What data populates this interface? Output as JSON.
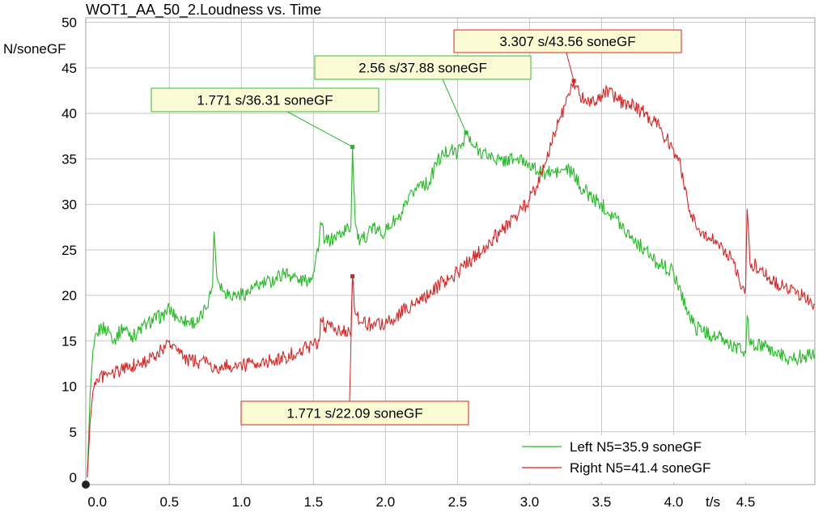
{
  "chart_data": {
    "type": "line",
    "title": "WOT1_AA_50_2.Loudness vs. Time",
    "xlabel": "t/s",
    "ylabel": "N/soneGF",
    "xlim": [
      -0.08,
      4.98
    ],
    "ylim": [
      -0.8,
      50.5
    ],
    "x_ticks": [
      0.0,
      0.5,
      1.0,
      1.5,
      2.0,
      2.5,
      3.0,
      3.5,
      4.0,
      4.5
    ],
    "x_tick_labels": [
      "0.0",
      "0.5",
      "1.0",
      "1.5",
      "2.0",
      "2.5",
      "3.0",
      "3.5",
      "4.0",
      "4.5"
    ],
    "y_ticks": [
      0,
      5,
      10,
      15,
      20,
      25,
      30,
      35,
      40,
      45,
      50
    ],
    "y_tick_labels": [
      "0",
      "5",
      "10",
      "15",
      "20",
      "25",
      "30",
      "35",
      "40",
      "45",
      "50"
    ],
    "grid": true,
    "legend_position": "bottom-right",
    "series": [
      {
        "name": "Left N5=35.9 soneGF",
        "color": "#22bb22",
        "points": [
          [
            -0.07,
            0.0
          ],
          [
            -0.05,
            9.0
          ],
          [
            -0.03,
            14.0
          ],
          [
            0.0,
            15.8
          ],
          [
            0.03,
            16.5
          ],
          [
            0.08,
            16.0
          ],
          [
            0.12,
            15.2
          ],
          [
            0.18,
            16.5
          ],
          [
            0.25,
            15.5
          ],
          [
            0.35,
            17.0
          ],
          [
            0.45,
            17.8
          ],
          [
            0.5,
            18.5
          ],
          [
            0.55,
            17.5
          ],
          [
            0.6,
            17.2
          ],
          [
            0.7,
            17.0
          ],
          [
            0.75,
            18.5
          ],
          [
            0.8,
            21.0
          ],
          [
            0.81,
            27.0
          ],
          [
            0.83,
            22.0
          ],
          [
            0.88,
            20.5
          ],
          [
            0.95,
            20.0
          ],
          [
            1.05,
            20.3
          ],
          [
            1.1,
            21.0
          ],
          [
            1.2,
            21.5
          ],
          [
            1.3,
            22.5
          ],
          [
            1.4,
            21.8
          ],
          [
            1.45,
            21.5
          ],
          [
            1.5,
            22.5
          ],
          [
            1.54,
            26.0
          ],
          [
            1.55,
            28.0
          ],
          [
            1.58,
            26.0
          ],
          [
            1.62,
            26.0
          ],
          [
            1.7,
            27.0
          ],
          [
            1.76,
            27.5
          ],
          [
            1.771,
            36.31
          ],
          [
            1.79,
            28.0
          ],
          [
            1.82,
            25.5
          ],
          [
            1.9,
            27.5
          ],
          [
            1.95,
            27.0
          ],
          [
            2.0,
            27.0
          ],
          [
            2.05,
            28.0
          ],
          [
            2.1,
            28.5
          ],
          [
            2.15,
            30.0
          ],
          [
            2.2,
            31.5
          ],
          [
            2.25,
            32.5
          ],
          [
            2.3,
            32.0
          ],
          [
            2.35,
            34.5
          ],
          [
            2.4,
            35.5
          ],
          [
            2.45,
            36.0
          ],
          [
            2.5,
            35.5
          ],
          [
            2.56,
            37.88
          ],
          [
            2.6,
            36.5
          ],
          [
            2.65,
            36.0
          ],
          [
            2.7,
            35.5
          ],
          [
            2.8,
            34.8
          ],
          [
            2.9,
            35.0
          ],
          [
            3.0,
            34.5
          ],
          [
            3.05,
            33.5
          ],
          [
            3.1,
            33.5
          ],
          [
            3.2,
            33.5
          ],
          [
            3.25,
            33.8
          ],
          [
            3.3,
            33.5
          ],
          [
            3.35,
            32.0
          ],
          [
            3.45,
            30.5
          ],
          [
            3.5,
            30.0
          ],
          [
            3.6,
            28.5
          ],
          [
            3.7,
            26.5
          ],
          [
            3.8,
            25.0
          ],
          [
            3.85,
            24.0
          ],
          [
            3.9,
            23.5
          ],
          [
            4.0,
            22.5
          ],
          [
            4.05,
            20.5
          ],
          [
            4.1,
            18.0
          ],
          [
            4.15,
            16.5
          ],
          [
            4.2,
            16.0
          ],
          [
            4.3,
            15.5
          ],
          [
            4.4,
            14.5
          ],
          [
            4.48,
            13.8
          ],
          [
            4.5,
            13.7
          ],
          [
            4.51,
            17.8
          ],
          [
            4.53,
            14.5
          ],
          [
            4.6,
            14.5
          ],
          [
            4.7,
            13.8
          ],
          [
            4.8,
            13.0
          ],
          [
            4.9,
            13.3
          ],
          [
            4.98,
            13.5
          ]
        ]
      },
      {
        "name": "Right N5=41.4 soneGF",
        "color": "#dd2222",
        "points": [
          [
            -0.07,
            0.0
          ],
          [
            -0.05,
            6.0
          ],
          [
            -0.03,
            9.5
          ],
          [
            0.0,
            10.8
          ],
          [
            0.05,
            11.2
          ],
          [
            0.1,
            11.5
          ],
          [
            0.2,
            12.0
          ],
          [
            0.3,
            12.5
          ],
          [
            0.4,
            13.2
          ],
          [
            0.45,
            14.0
          ],
          [
            0.5,
            15.0
          ],
          [
            0.55,
            14.0
          ],
          [
            0.6,
            13.2
          ],
          [
            0.65,
            12.8
          ],
          [
            0.75,
            12.5
          ],
          [
            0.85,
            12.2
          ],
          [
            1.0,
            12.3
          ],
          [
            1.1,
            12.5
          ],
          [
            1.2,
            12.8
          ],
          [
            1.3,
            13.2
          ],
          [
            1.4,
            13.8
          ],
          [
            1.5,
            14.5
          ],
          [
            1.54,
            15.0
          ],
          [
            1.55,
            17.5
          ],
          [
            1.58,
            16.5
          ],
          [
            1.65,
            16.5
          ],
          [
            1.7,
            16.2
          ],
          [
            1.76,
            15.5
          ],
          [
            1.771,
            22.09
          ],
          [
            1.79,
            18.0
          ],
          [
            1.82,
            17.0
          ],
          [
            1.9,
            16.8
          ],
          [
            2.0,
            17.0
          ],
          [
            2.1,
            18.0
          ],
          [
            2.2,
            19.0
          ],
          [
            2.3,
            20.0
          ],
          [
            2.4,
            21.5
          ],
          [
            2.5,
            22.5
          ],
          [
            2.6,
            24.0
          ],
          [
            2.7,
            25.5
          ],
          [
            2.8,
            27.0
          ],
          [
            2.9,
            28.5
          ],
          [
            3.0,
            30.5
          ],
          [
            3.05,
            32.0
          ],
          [
            3.1,
            34.0
          ],
          [
            3.15,
            36.5
          ],
          [
            3.2,
            39.0
          ],
          [
            3.25,
            41.0
          ],
          [
            3.307,
            43.56
          ],
          [
            3.35,
            42.0
          ],
          [
            3.4,
            41.0
          ],
          [
            3.5,
            42.0
          ],
          [
            3.55,
            42.5
          ],
          [
            3.6,
            41.5
          ],
          [
            3.7,
            41.0
          ],
          [
            3.8,
            40.0
          ],
          [
            3.9,
            38.5
          ],
          [
            4.0,
            36.0
          ],
          [
            4.05,
            34.0
          ],
          [
            4.1,
            30.0
          ],
          [
            4.15,
            28.0
          ],
          [
            4.2,
            27.0
          ],
          [
            4.3,
            26.0
          ],
          [
            4.4,
            24.0
          ],
          [
            4.48,
            21.0
          ],
          [
            4.5,
            20.8
          ],
          [
            4.51,
            29.5
          ],
          [
            4.53,
            23.5
          ],
          [
            4.6,
            23.0
          ],
          [
            4.7,
            21.5
          ],
          [
            4.8,
            20.5
          ],
          [
            4.9,
            20.0
          ],
          [
            4.98,
            19.0
          ]
        ]
      }
    ],
    "annotations": [
      {
        "text": "1.771 s/36.31 soneGF",
        "x": 1.771,
        "y": 36.31,
        "series": 0
      },
      {
        "text": "2.56 s/37.88 soneGF",
        "x": 2.56,
        "y": 37.88,
        "series": 0
      },
      {
        "text": "3.307 s/43.56 soneGF",
        "x": 3.307,
        "y": 43.56,
        "series": 1
      },
      {
        "text": "1.771 s/22.09 soneGF",
        "x": 1.771,
        "y": 22.09,
        "series": 1
      }
    ]
  }
}
